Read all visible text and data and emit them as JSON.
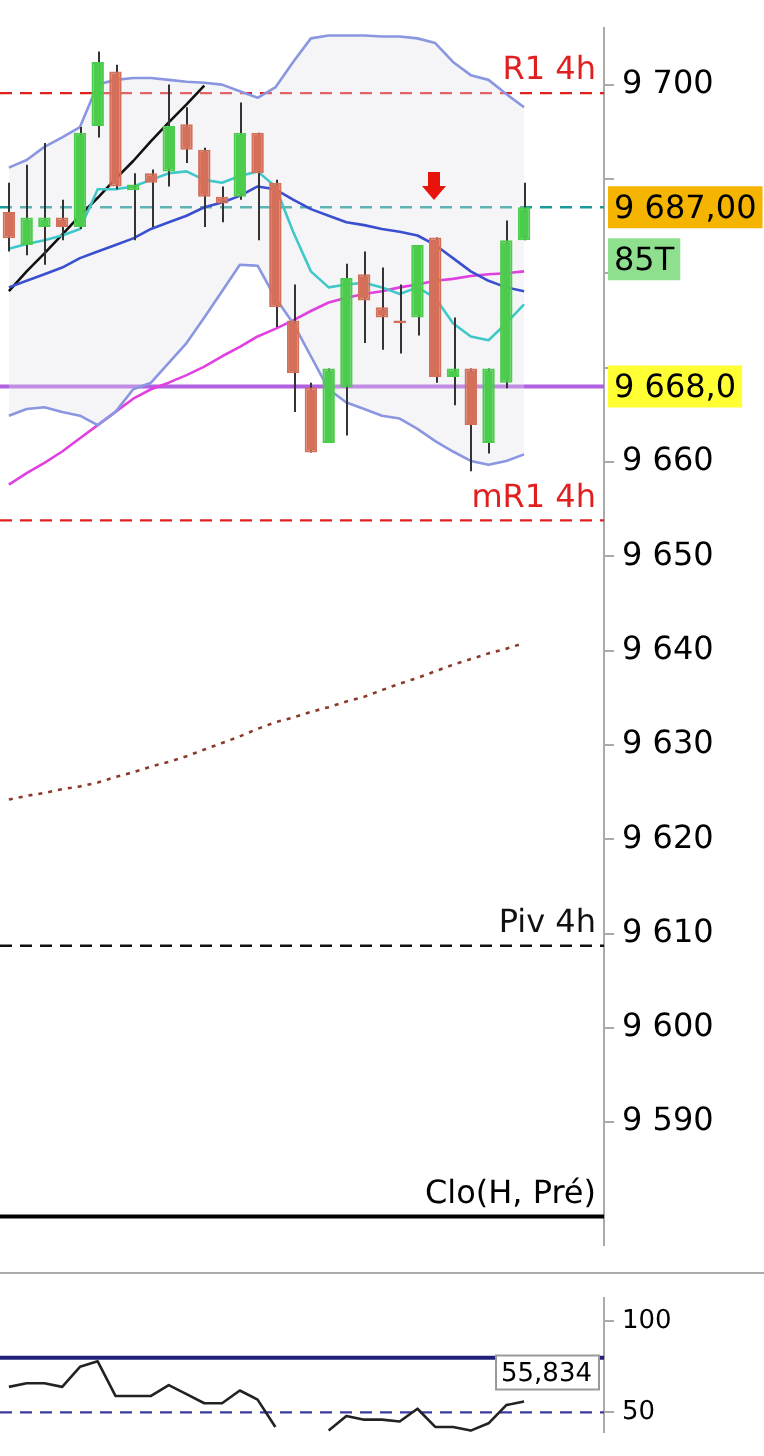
{
  "chart_data": [
    {
      "type": "candlestick",
      "tick_labels": "y",
      "grid": false,
      "legend": false,
      "categories": [
        null,
        null,
        null,
        null,
        null,
        null,
        null,
        null,
        null,
        null,
        null,
        null,
        null,
        null,
        null,
        null,
        null,
        null,
        null,
        null,
        null,
        null,
        null,
        null,
        null,
        null,
        null,
        null,
        null,
        null,
        null,
        null,
        null,
        null
      ],
      "ohlc": [
        [
          9686.5,
          9689.6,
          9682.3,
          9683.7
        ],
        [
          9683.0,
          9691.5,
          9681.9,
          9685.9
        ],
        [
          9684.9,
          9693.8,
          9680.9,
          9685.9
        ],
        [
          9685.9,
          9687.8,
          9683.5,
          9684.9
        ],
        [
          9684.9,
          9695.5,
          9684.7,
          9694.9
        ],
        [
          9695.6,
          9703.5,
          9694.4,
          9702.4
        ],
        [
          9701.4,
          9702.1,
          9688.9,
          9689.2
        ],
        [
          9688.8,
          9690.6,
          9683.5,
          9689.4
        ],
        [
          9690.6,
          9691.0,
          9684.9,
          9689.6
        ],
        [
          9690.8,
          9700.0,
          9689.2,
          9695.6
        ],
        [
          9695.8,
          9697.6,
          9691.7,
          9693.1
        ],
        [
          9693.1,
          9693.3,
          9684.9,
          9688.1
        ],
        [
          9688.1,
          9689.2,
          9685.4,
          9687.4
        ],
        [
          9688.1,
          9698.1,
          9687.8,
          9694.9
        ],
        [
          9694.9,
          9694.9,
          9683.5,
          9690.6
        ],
        [
          9689.6,
          9689.9,
          9674.3,
          9676.4
        ],
        [
          9675.0,
          9678.8,
          9665.3,
          9669.4
        ],
        [
          9667.9,
          9668.4,
          9661.0,
          9661.0
        ],
        [
          9662.0,
          9669.9,
          9662.0,
          9669.9
        ],
        [
          9667.9,
          9681.0,
          9662.8,
          9679.5
        ],
        [
          9679.9,
          9682.3,
          9672.6,
          9677.1
        ],
        [
          9676.4,
          9680.6,
          9671.9,
          9675.3
        ],
        [
          9675.0,
          9678.8,
          9671.5,
          9674.7
        ],
        [
          9675.3,
          9683.0,
          9673.4,
          9683.0
        ],
        [
          9683.8,
          9683.8,
          9668.4,
          9669.0
        ],
        [
          9669.0,
          9675.3,
          9666.0,
          9669.9
        ],
        [
          9669.9,
          9669.9,
          9659.0,
          9663.9
        ],
        [
          9662.0,
          9669.9,
          9660.9,
          9669.9
        ],
        [
          9668.4,
          9685.6,
          9667.8,
          9683.5
        ],
        [
          9683.5,
          9689.6,
          9683.5,
          9687.0
        ],
        null,
        null,
        null,
        null
      ],
      "colors": [
        "#d4705a",
        "#4ccc4c",
        "#4ccc4c",
        "#d4705a",
        "#4ccc4c",
        "#4ccc4c",
        "#d4705a",
        "#4ccc4c",
        "#d4705a",
        "#4ccc4c",
        "#d4705a",
        "#d4705a",
        "#d4705a",
        "#4ccc4c",
        "#d4705a",
        "#d4705a",
        "#d4705a",
        "#d4705a",
        "#4ccc4c",
        "#4ccc4c",
        "#d4705a",
        "#d4705a",
        "#d4705a",
        "#4ccc4c",
        "#d4705a",
        "#4ccc4c",
        "#d4705a",
        "#4ccc4c",
        "#4ccc4c",
        "#4ccc4c",
        null,
        null,
        null,
        null
      ],
      "series": [
        {
          "type": "line",
          "color": "#3a4fcf",
          "line_style": "solid",
          "values": [
            9678.5,
            9679.2,
            9679.9,
            9680.6,
            9681.6,
            9682.3,
            9683.0,
            9683.7,
            9684.7,
            9685.4,
            9686.1,
            9687.0,
            9687.5,
            9688.2,
            9689.2,
            9688.9,
            9687.8,
            9686.8,
            9686.1,
            9685.4,
            9685.1,
            9684.7,
            9684.4,
            9684.0,
            9683.0,
            9681.6,
            9680.2,
            9679.2,
            9678.5,
            9678.1,
            null,
            null,
            null,
            null
          ],
          "lower": [
            9664.9,
            9665.6,
            9665.8,
            9665.3,
            9664.9,
            9663.9,
            9665.3,
            9667.7,
            9668.4,
            9670.5,
            9672.6,
            9675.3,
            9678.1,
            9680.9,
            9680.8,
            9677.4,
            9674.7,
            9671.2,
            9667.7,
            9666.3,
            9665.6,
            9664.9,
            9664.6,
            9663.5,
            9662.2,
            9661.1,
            9660.1,
            9659.7,
            9660.1,
            9660.8,
            null,
            null,
            null,
            null
          ],
          "upper": [
            9691.2,
            9692.0,
            9693.4,
            9694.4,
            9695.5,
            9700.0,
            9700.5,
            9700.7,
            9700.7,
            9700.5,
            9700.3,
            9700.2,
            9700.0,
            9699.3,
            9698.6,
            9699.7,
            9702.4,
            9704.9,
            9705.2,
            9705.2,
            9705.2,
            9705.1,
            9705.1,
            9704.9,
            9704.4,
            9702.4,
            9701.0,
            9700.5,
            9699.0,
            9697.6,
            null,
            null,
            null,
            null
          ]
        },
        {
          "type": "line",
          "color": "#8a96e0",
          "line_style": "solid",
          "values": [
            9664.9,
            9665.6,
            9665.8,
            9665.3,
            9664.9,
            9663.9,
            9665.3,
            9667.7,
            9668.4,
            9670.5,
            9672.6,
            9675.3,
            9678.1,
            9680.9,
            9680.8,
            9677.4,
            9674.7,
            9671.2,
            9667.7,
            9666.3,
            9665.6,
            9664.9,
            9664.6,
            9663.5,
            9662.2,
            9661.1,
            9660.1,
            9659.7,
            9660.1,
            9660.8,
            null,
            null,
            null,
            null
          ]
        },
        {
          "type": "line",
          "color": "#8a96e0",
          "line_style": "solid",
          "values": [
            9691.2,
            9692.0,
            9693.4,
            9694.4,
            9695.5,
            9700.0,
            9700.5,
            9700.7,
            9700.7,
            9700.5,
            9700.3,
            9700.2,
            9700.0,
            9699.3,
            9698.6,
            9699.7,
            9702.4,
            9704.9,
            9705.2,
            9705.2,
            9705.2,
            9705.1,
            9705.1,
            9704.9,
            9704.4,
            9702.4,
            9701.0,
            9700.5,
            9699.0,
            9697.6,
            null,
            null,
            null,
            null
          ]
        },
        {
          "type": "line",
          "color": "#40c8c8",
          "line_style": "solid",
          "values": [
            9682.6,
            9683.1,
            9683.5,
            9684.0,
            9684.7,
            9688.9,
            9688.9,
            9689.2,
            9689.9,
            9690.6,
            9690.8,
            9689.9,
            9689.6,
            9690.3,
            9690.8,
            9689.2,
            9684.4,
            9680.2,
            9678.5,
            9678.8,
            9679.0,
            9678.5,
            9677.8,
            9678.5,
            9677.4,
            9674.7,
            9673.3,
            9672.9,
            9674.7,
            9676.7,
            null,
            null,
            null,
            null
          ]
        },
        {
          "type": "line",
          "color": "#e040e0",
          "line_style": "solid",
          "values": [
            9657.6,
            9658.8,
            9659.9,
            9661.1,
            9662.5,
            9663.9,
            9665.3,
            9666.7,
            9667.7,
            9668.4,
            9669.2,
            9670.1,
            9671.2,
            9672.2,
            9673.3,
            9674.1,
            9675.0,
            9676.0,
            9676.9,
            9677.4,
            9677.8,
            9678.1,
            9678.5,
            9678.8,
            9679.2,
            9679.4,
            9679.7,
            9679.9,
            9680.0,
            9680.2,
            null,
            null,
            null,
            null
          ]
        },
        {
          "type": "line",
          "color": "#8b3a2a",
          "line_style": "dotted",
          "values": [
            9624.2,
            9624.6,
            9624.9,
            9625.3,
            9625.6,
            9626.0,
            9626.6,
            9627.1,
            9627.7,
            9628.2,
            9628.8,
            9629.5,
            9630.2,
            9630.9,
            9631.7,
            9632.4,
            9632.9,
            9633.5,
            9634.0,
            9634.6,
            9635.1,
            9635.8,
            9636.5,
            9637.1,
            9637.8,
            9638.5,
            9639.1,
            9639.7,
            9640.2,
            9640.8,
            null,
            null,
            null,
            null
          ]
        },
        {
          "type": "line",
          "color": "#111111",
          "line_style": "solid",
          "values": [
            9678.1,
            9680.2,
            9682.1,
            9684.1,
            9686.1,
            9688.0,
            9690.0,
            9691.9,
            9694.0,
            9696.0,
            9697.9,
            9699.9,
            null,
            null,
            null,
            null,
            null,
            null,
            null,
            null,
            null,
            null,
            null,
            null,
            null,
            null,
            null,
            null,
            null,
            null,
            null,
            null,
            null,
            null
          ]
        }
      ],
      "ylim": [
        9577,
        9706
      ],
      "yticks": [
        {
          "value": 9590,
          "label": "9 590"
        },
        {
          "value": 9600,
          "label": "9 600"
        },
        {
          "value": 9610,
          "label": "9 610"
        },
        {
          "value": 9620,
          "label": "9 620"
        },
        {
          "value": 9630,
          "label": "9 630"
        },
        {
          "value": 9640,
          "label": "9 640"
        },
        {
          "value": 9650,
          "label": "9 650"
        },
        {
          "value": 9660,
          "label": "9 660"
        },
        {
          "value": 9670,
          "label": null
        },
        {
          "value": 9680,
          "label": null
        },
        {
          "value": 9690,
          "label": null
        },
        {
          "value": 9700,
          "label": "9 700"
        }
      ],
      "ref_lines": [
        {
          "axis": "y",
          "value": 9699.1,
          "label": "R1 4h",
          "color": "#e02020",
          "line_style": "dashed"
        },
        {
          "axis": "y",
          "value": 9653.8,
          "label": "mR1 4h",
          "color": "#e02020",
          "line_style": "dashed"
        },
        {
          "axis": "y",
          "value": 9608.7,
          "label": "Piv 4h",
          "color": "#111111",
          "line_style": "dashed"
        },
        {
          "axis": "y",
          "value": 9687,
          "label": "9 687,00",
          "color": "#1a9a9a",
          "line_style": "dashed"
        },
        {
          "axis": "y",
          "value": 9668,
          "label": "9 668,0",
          "color": "#b060e0",
          "line_style": "solid"
        },
        {
          "axis": "y",
          "value": 9580,
          "label": "Clo(H, Pré)",
          "color": "#000000",
          "line_style": "solid"
        }
      ],
      "annotations": [
        "85T"
      ]
    },
    {
      "type": "line",
      "tick_labels": "y",
      "grid": false,
      "legend": false,
      "categories": [
        null,
        null,
        null,
        null,
        null,
        null,
        null,
        null,
        null,
        null,
        null,
        null,
        null,
        null,
        null,
        null,
        null,
        null,
        null,
        null,
        null,
        null,
        null,
        null,
        null,
        null,
        null,
        null,
        null,
        null,
        null,
        null,
        null,
        null
      ],
      "series": [
        {
          "color": "#222222",
          "values": [
            64,
            66,
            66,
            64,
            75,
            78,
            59,
            59,
            59,
            65,
            60,
            55,
            55,
            62,
            57,
            42,
            null,
            null,
            40,
            48,
            46,
            46,
            45,
            52,
            42,
            42,
            40,
            44,
            54,
            56,
            null,
            null,
            null,
            null
          ]
        }
      ],
      "annotations": [
        "55,834"
      ],
      "ylim": [
        39,
        113
      ],
      "yticks": [
        50,
        100
      ],
      "ref_lines": [
        {
          "axis": "y",
          "value": 80,
          "color": "#20207a",
          "line_style": "solid"
        },
        {
          "axis": "y",
          "value": 50,
          "color": "#3a3aa0",
          "line_style": "dashed"
        }
      ]
    }
  ]
}
